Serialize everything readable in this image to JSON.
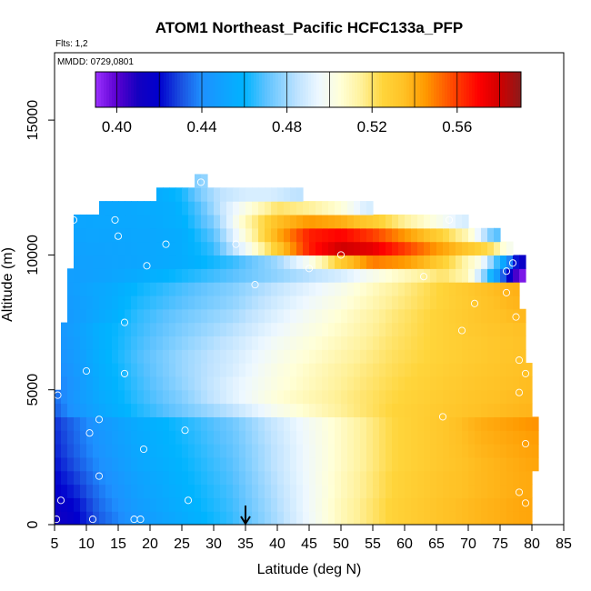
{
  "header": {
    "title": "ATOM1 Northeast_Pacific HCFC133a_PFP",
    "flights_label": "Flts: 1,2",
    "dates_label": "MMDD: 0729,0801"
  },
  "chart_data": {
    "type": "heatmap",
    "title": "ATOM1 Northeast_Pacific HCFC133a_PFP",
    "xlabel": "Latitude (deg N)",
    "ylabel": "Altitude (m)",
    "xlim": [
      5,
      85
    ],
    "ylim": [
      0,
      17500
    ],
    "x_ticks": [
      5,
      10,
      15,
      20,
      25,
      30,
      35,
      40,
      45,
      50,
      55,
      60,
      65,
      70,
      75,
      80,
      85
    ],
    "y_ticks": [
      0,
      5000,
      10000,
      15000
    ],
    "colorbar": {
      "range": [
        0.39,
        0.59
      ],
      "tick_values": [
        0.4,
        0.44,
        0.48,
        0.52,
        0.56
      ],
      "tick_labels": [
        "0.40",
        "0.44",
        "0.48",
        "0.52",
        "0.56"
      ],
      "break_values": [
        0.4,
        0.42,
        0.44,
        0.46,
        0.48,
        0.5,
        0.52,
        0.54,
        0.56,
        0.58
      ],
      "stops": [
        {
          "v": 0.39,
          "c": "#9b30ff"
        },
        {
          "v": 0.4,
          "c": "#5a00d0"
        },
        {
          "v": 0.41,
          "c": "#1400c0"
        },
        {
          "v": 0.42,
          "c": "#0000cd"
        },
        {
          "v": 0.43,
          "c": "#1a4fe0"
        },
        {
          "v": 0.44,
          "c": "#1e90ff"
        },
        {
          "v": 0.46,
          "c": "#00b4ff"
        },
        {
          "v": 0.47,
          "c": "#5cc2ff"
        },
        {
          "v": 0.485,
          "c": "#bfe3ff"
        },
        {
          "v": 0.495,
          "c": "#eef8ff"
        },
        {
          "v": 0.505,
          "c": "#ffffd8"
        },
        {
          "v": 0.515,
          "c": "#fff19a"
        },
        {
          "v": 0.525,
          "c": "#ffd53b"
        },
        {
          "v": 0.535,
          "c": "#ffc125"
        },
        {
          "v": 0.545,
          "c": "#ff9a00"
        },
        {
          "v": 0.555,
          "c": "#ff5a00"
        },
        {
          "v": 0.57,
          "c": "#ff0000"
        },
        {
          "v": 0.58,
          "c": "#d00000"
        },
        {
          "v": 0.59,
          "c": "#8b1a1a"
        }
      ]
    },
    "grid": false,
    "marker": {
      "latitude": 35,
      "label": "arrow"
    },
    "grid_field": {
      "lat_start": 5,
      "lat_step": 1,
      "alt_step": 500,
      "rows": [
        {
          "alt": 250,
          "min": 5,
          "max": 79,
          "lat_knots": [
            5,
            8,
            12,
            18,
            25,
            33,
            40,
            50,
            58,
            66,
            72,
            79
          ],
          "values": [
            0.412,
            0.418,
            0.432,
            0.445,
            0.455,
            0.466,
            0.482,
            0.51,
            0.526,
            0.534,
            0.538,
            0.542
          ]
        },
        {
          "alt": 750,
          "min": 5,
          "max": 79,
          "lat_knots": [
            5,
            8,
            12,
            18,
            25,
            33,
            40,
            50,
            58,
            66,
            72,
            79
          ],
          "values": [
            0.414,
            0.42,
            0.434,
            0.447,
            0.457,
            0.467,
            0.483,
            0.51,
            0.526,
            0.534,
            0.538,
            0.542
          ]
        },
        {
          "alt": 1250,
          "min": 5,
          "max": 79,
          "lat_knots": [
            5,
            8,
            12,
            18,
            25,
            33,
            40,
            50,
            58,
            66,
            72,
            79
          ],
          "values": [
            0.418,
            0.424,
            0.436,
            0.449,
            0.458,
            0.468,
            0.484,
            0.509,
            0.525,
            0.533,
            0.537,
            0.541
          ]
        },
        {
          "alt": 1750,
          "min": 5,
          "max": 79,
          "lat_knots": [
            5,
            8,
            12,
            18,
            25,
            33,
            40,
            50,
            58,
            66,
            72,
            79
          ],
          "values": [
            0.42,
            0.427,
            0.438,
            0.45,
            0.459,
            0.469,
            0.485,
            0.509,
            0.525,
            0.533,
            0.537,
            0.541
          ]
        },
        {
          "alt": 2250,
          "min": 5,
          "max": 80,
          "lat_knots": [
            5,
            8,
            12,
            18,
            25,
            33,
            40,
            50,
            58,
            66,
            72,
            80
          ],
          "values": [
            0.422,
            0.43,
            0.44,
            0.452,
            0.46,
            0.47,
            0.486,
            0.508,
            0.524,
            0.532,
            0.537,
            0.542
          ]
        },
        {
          "alt": 2750,
          "min": 5,
          "max": 80,
          "lat_knots": [
            5,
            8,
            12,
            18,
            25,
            33,
            40,
            50,
            58,
            66,
            72,
            80
          ],
          "values": [
            0.424,
            0.432,
            0.442,
            0.453,
            0.461,
            0.471,
            0.486,
            0.508,
            0.524,
            0.532,
            0.538,
            0.543
          ]
        },
        {
          "alt": 3250,
          "min": 5,
          "max": 80,
          "lat_knots": [
            5,
            8,
            12,
            18,
            25,
            33,
            40,
            50,
            58,
            66,
            72,
            80
          ],
          "values": [
            0.425,
            0.433,
            0.443,
            0.454,
            0.462,
            0.472,
            0.487,
            0.508,
            0.524,
            0.532,
            0.539,
            0.544
          ]
        },
        {
          "alt": 3750,
          "min": 5,
          "max": 80,
          "lat_knots": [
            5,
            8,
            12,
            18,
            25,
            33,
            40,
            50,
            58,
            66,
            72,
            80
          ],
          "values": [
            0.426,
            0.434,
            0.444,
            0.455,
            0.463,
            0.473,
            0.488,
            0.508,
            0.524,
            0.532,
            0.54,
            0.546
          ]
        },
        {
          "alt": 4250,
          "min": 5,
          "max": 79,
          "lat_knots": [
            5,
            8,
            12,
            18,
            25,
            33,
            40,
            50,
            58,
            66,
            72,
            79
          ],
          "values": [
            0.432,
            0.442,
            0.452,
            0.463,
            0.473,
            0.485,
            0.5,
            0.515,
            0.525,
            0.531,
            0.535,
            0.538
          ]
        },
        {
          "alt": 4750,
          "min": 5,
          "max": 79,
          "lat_knots": [
            5,
            8,
            12,
            18,
            25,
            33,
            40,
            50,
            58,
            66,
            72,
            79
          ],
          "values": [
            0.434,
            0.444,
            0.454,
            0.465,
            0.476,
            0.492,
            0.505,
            0.516,
            0.524,
            0.53,
            0.534,
            0.537
          ]
        },
        {
          "alt": 5250,
          "min": 6,
          "max": 79,
          "lat_knots": [
            6,
            9,
            12,
            18,
            25,
            33,
            40,
            50,
            58,
            66,
            72,
            79
          ],
          "values": [
            0.438,
            0.446,
            0.455,
            0.466,
            0.478,
            0.492,
            0.503,
            0.515,
            0.523,
            0.529,
            0.533,
            0.536
          ]
        },
        {
          "alt": 5750,
          "min": 6,
          "max": 79,
          "lat_knots": [
            6,
            9,
            12,
            18,
            25,
            33,
            40,
            50,
            58,
            66,
            72,
            79
          ],
          "values": [
            0.44,
            0.447,
            0.456,
            0.467,
            0.479,
            0.49,
            0.502,
            0.514,
            0.522,
            0.528,
            0.532,
            0.535
          ]
        },
        {
          "alt": 6250,
          "min": 6,
          "max": 78,
          "lat_knots": [
            6,
            9,
            12,
            18,
            25,
            33,
            40,
            50,
            58,
            66,
            72,
            78
          ],
          "values": [
            0.442,
            0.448,
            0.457,
            0.468,
            0.479,
            0.489,
            0.5,
            0.512,
            0.521,
            0.527,
            0.531,
            0.534
          ]
        },
        {
          "alt": 6750,
          "min": 6,
          "max": 78,
          "lat_knots": [
            6,
            9,
            12,
            18,
            25,
            33,
            40,
            50,
            58,
            66,
            72,
            78
          ],
          "values": [
            0.443,
            0.449,
            0.457,
            0.467,
            0.477,
            0.487,
            0.498,
            0.51,
            0.52,
            0.527,
            0.531,
            0.534
          ]
        },
        {
          "alt": 7250,
          "min": 6,
          "max": 78,
          "lat_knots": [
            6,
            9,
            12,
            18,
            25,
            33,
            40,
            50,
            58,
            66,
            72,
            78
          ],
          "values": [
            0.444,
            0.45,
            0.457,
            0.466,
            0.475,
            0.484,
            0.495,
            0.508,
            0.519,
            0.527,
            0.532,
            0.535
          ]
        },
        {
          "alt": 7750,
          "min": 7,
          "max": 78,
          "lat_knots": [
            7,
            10,
            14,
            18,
            25,
            33,
            40,
            50,
            58,
            66,
            72,
            78
          ],
          "values": [
            0.445,
            0.45,
            0.457,
            0.465,
            0.473,
            0.481,
            0.492,
            0.506,
            0.518,
            0.527,
            0.533,
            0.537
          ]
        },
        {
          "alt": 8250,
          "min": 7,
          "max": 77,
          "lat_knots": [
            7,
            10,
            14,
            18,
            25,
            33,
            40,
            50,
            58,
            66,
            72,
            77
          ],
          "values": [
            0.446,
            0.45,
            0.456,
            0.463,
            0.47,
            0.478,
            0.489,
            0.503,
            0.516,
            0.526,
            0.533,
            0.538
          ]
        },
        {
          "alt": 8750,
          "min": 7,
          "max": 77,
          "lat_knots": [
            7,
            10,
            14,
            18,
            25,
            33,
            40,
            50,
            58,
            66,
            72,
            77
          ],
          "values": [
            0.447,
            0.451,
            0.455,
            0.461,
            0.468,
            0.476,
            0.486,
            0.5,
            0.514,
            0.526,
            0.534,
            0.539
          ]
        },
        {
          "alt": 9250,
          "min": 7,
          "max": 78,
          "lat_knots": [
            7,
            12,
            18,
            25,
            33,
            40,
            50,
            58,
            66,
            70,
            73,
            75,
            77,
            78
          ],
          "values": [
            0.448,
            0.45,
            0.455,
            0.462,
            0.47,
            0.478,
            0.49,
            0.506,
            0.52,
            0.51,
            0.47,
            0.44,
            0.41,
            0.395
          ]
        },
        {
          "alt": 9750,
          "min": 8,
          "max": 78,
          "lat_knots": [
            8,
            12,
            18,
            25,
            33,
            40,
            45,
            50,
            55,
            60,
            64,
            68,
            72,
            75,
            77,
            78
          ],
          "values": [
            0.449,
            0.45,
            0.452,
            0.456,
            0.466,
            0.48,
            0.5,
            0.53,
            0.55,
            0.545,
            0.535,
            0.52,
            0.5,
            0.46,
            0.43,
            0.415
          ]
        },
        {
          "alt": 10250,
          "min": 8,
          "max": 76,
          "lat_knots": [
            8,
            14,
            20,
            25,
            30,
            35,
            40,
            45,
            50,
            55,
            60,
            65,
            70,
            74,
            76
          ],
          "values": [
            0.45,
            0.451,
            0.453,
            0.456,
            0.466,
            0.496,
            0.53,
            0.565,
            0.58,
            0.575,
            0.56,
            0.545,
            0.532,
            0.52,
            0.5
          ]
        },
        {
          "alt": 10750,
          "min": 8,
          "max": 74,
          "lat_knots": [
            8,
            14,
            20,
            25,
            30,
            35,
            40,
            45,
            50,
            55,
            60,
            65,
            70,
            74
          ],
          "values": [
            0.451,
            0.452,
            0.453,
            0.456,
            0.47,
            0.505,
            0.54,
            0.565,
            0.57,
            0.56,
            0.545,
            0.53,
            0.51,
            0.47
          ]
        },
        {
          "alt": 11250,
          "min": 8,
          "max": 69,
          "lat_knots": [
            8,
            14,
            20,
            25,
            30,
            35,
            40,
            45,
            50,
            55,
            60,
            65,
            69
          ],
          "values": [
            0.452,
            0.453,
            0.454,
            0.458,
            0.475,
            0.51,
            0.535,
            0.545,
            0.54,
            0.53,
            0.515,
            0.502,
            0.49
          ]
        },
        {
          "alt": 11750,
          "min": 12,
          "max": 54,
          "lat_knots": [
            12,
            18,
            24,
            28,
            32,
            36,
            40,
            45,
            50,
            54
          ],
          "values": [
            0.452,
            0.454,
            0.457,
            0.47,
            0.49,
            0.505,
            0.52,
            0.515,
            0.505,
            0.49
          ]
        },
        {
          "alt": 12250,
          "min": 21,
          "max": 43,
          "lat_knots": [
            21,
            25,
            28,
            31,
            35,
            39,
            43
          ],
          "values": [
            0.455,
            0.462,
            0.475,
            0.485,
            0.49,
            0.49,
            0.485
          ]
        },
        {
          "alt": 12750,
          "min": 27,
          "max": 28,
          "lat_knots": [
            27,
            28
          ],
          "values": [
            0.475,
            0.478
          ]
        }
      ]
    },
    "samples": [
      [
        5.3,
        200
      ],
      [
        11,
        200
      ],
      [
        17.5,
        200
      ],
      [
        18.5,
        200
      ],
      [
        6,
        900
      ],
      [
        26,
        900
      ],
      [
        78,
        1200
      ],
      [
        79,
        800
      ],
      [
        12,
        1800
      ],
      [
        19,
        2800
      ],
      [
        25.5,
        3500
      ],
      [
        10.5,
        3400
      ],
      [
        12,
        3900
      ],
      [
        79,
        3000
      ],
      [
        66,
        4000
      ],
      [
        5.5,
        4800
      ],
      [
        78,
        4900
      ],
      [
        10,
        5700
      ],
      [
        16,
        5600
      ],
      [
        79,
        5600
      ],
      [
        78,
        6100
      ],
      [
        16,
        7500
      ],
      [
        69,
        7200
      ],
      [
        77.5,
        7700
      ],
      [
        71,
        8200
      ],
      [
        76,
        8600
      ],
      [
        36.5,
        8900
      ],
      [
        63,
        9200
      ],
      [
        76,
        9400
      ],
      [
        45,
        9500
      ],
      [
        19.5,
        9600
      ],
      [
        77,
        9700
      ],
      [
        50,
        10000
      ],
      [
        22.5,
        10400
      ],
      [
        33.5,
        10400
      ],
      [
        15,
        10700
      ],
      [
        8,
        11300
      ],
      [
        14.5,
        11300
      ],
      [
        67,
        11300
      ],
      [
        28,
        12700
      ]
    ]
  }
}
